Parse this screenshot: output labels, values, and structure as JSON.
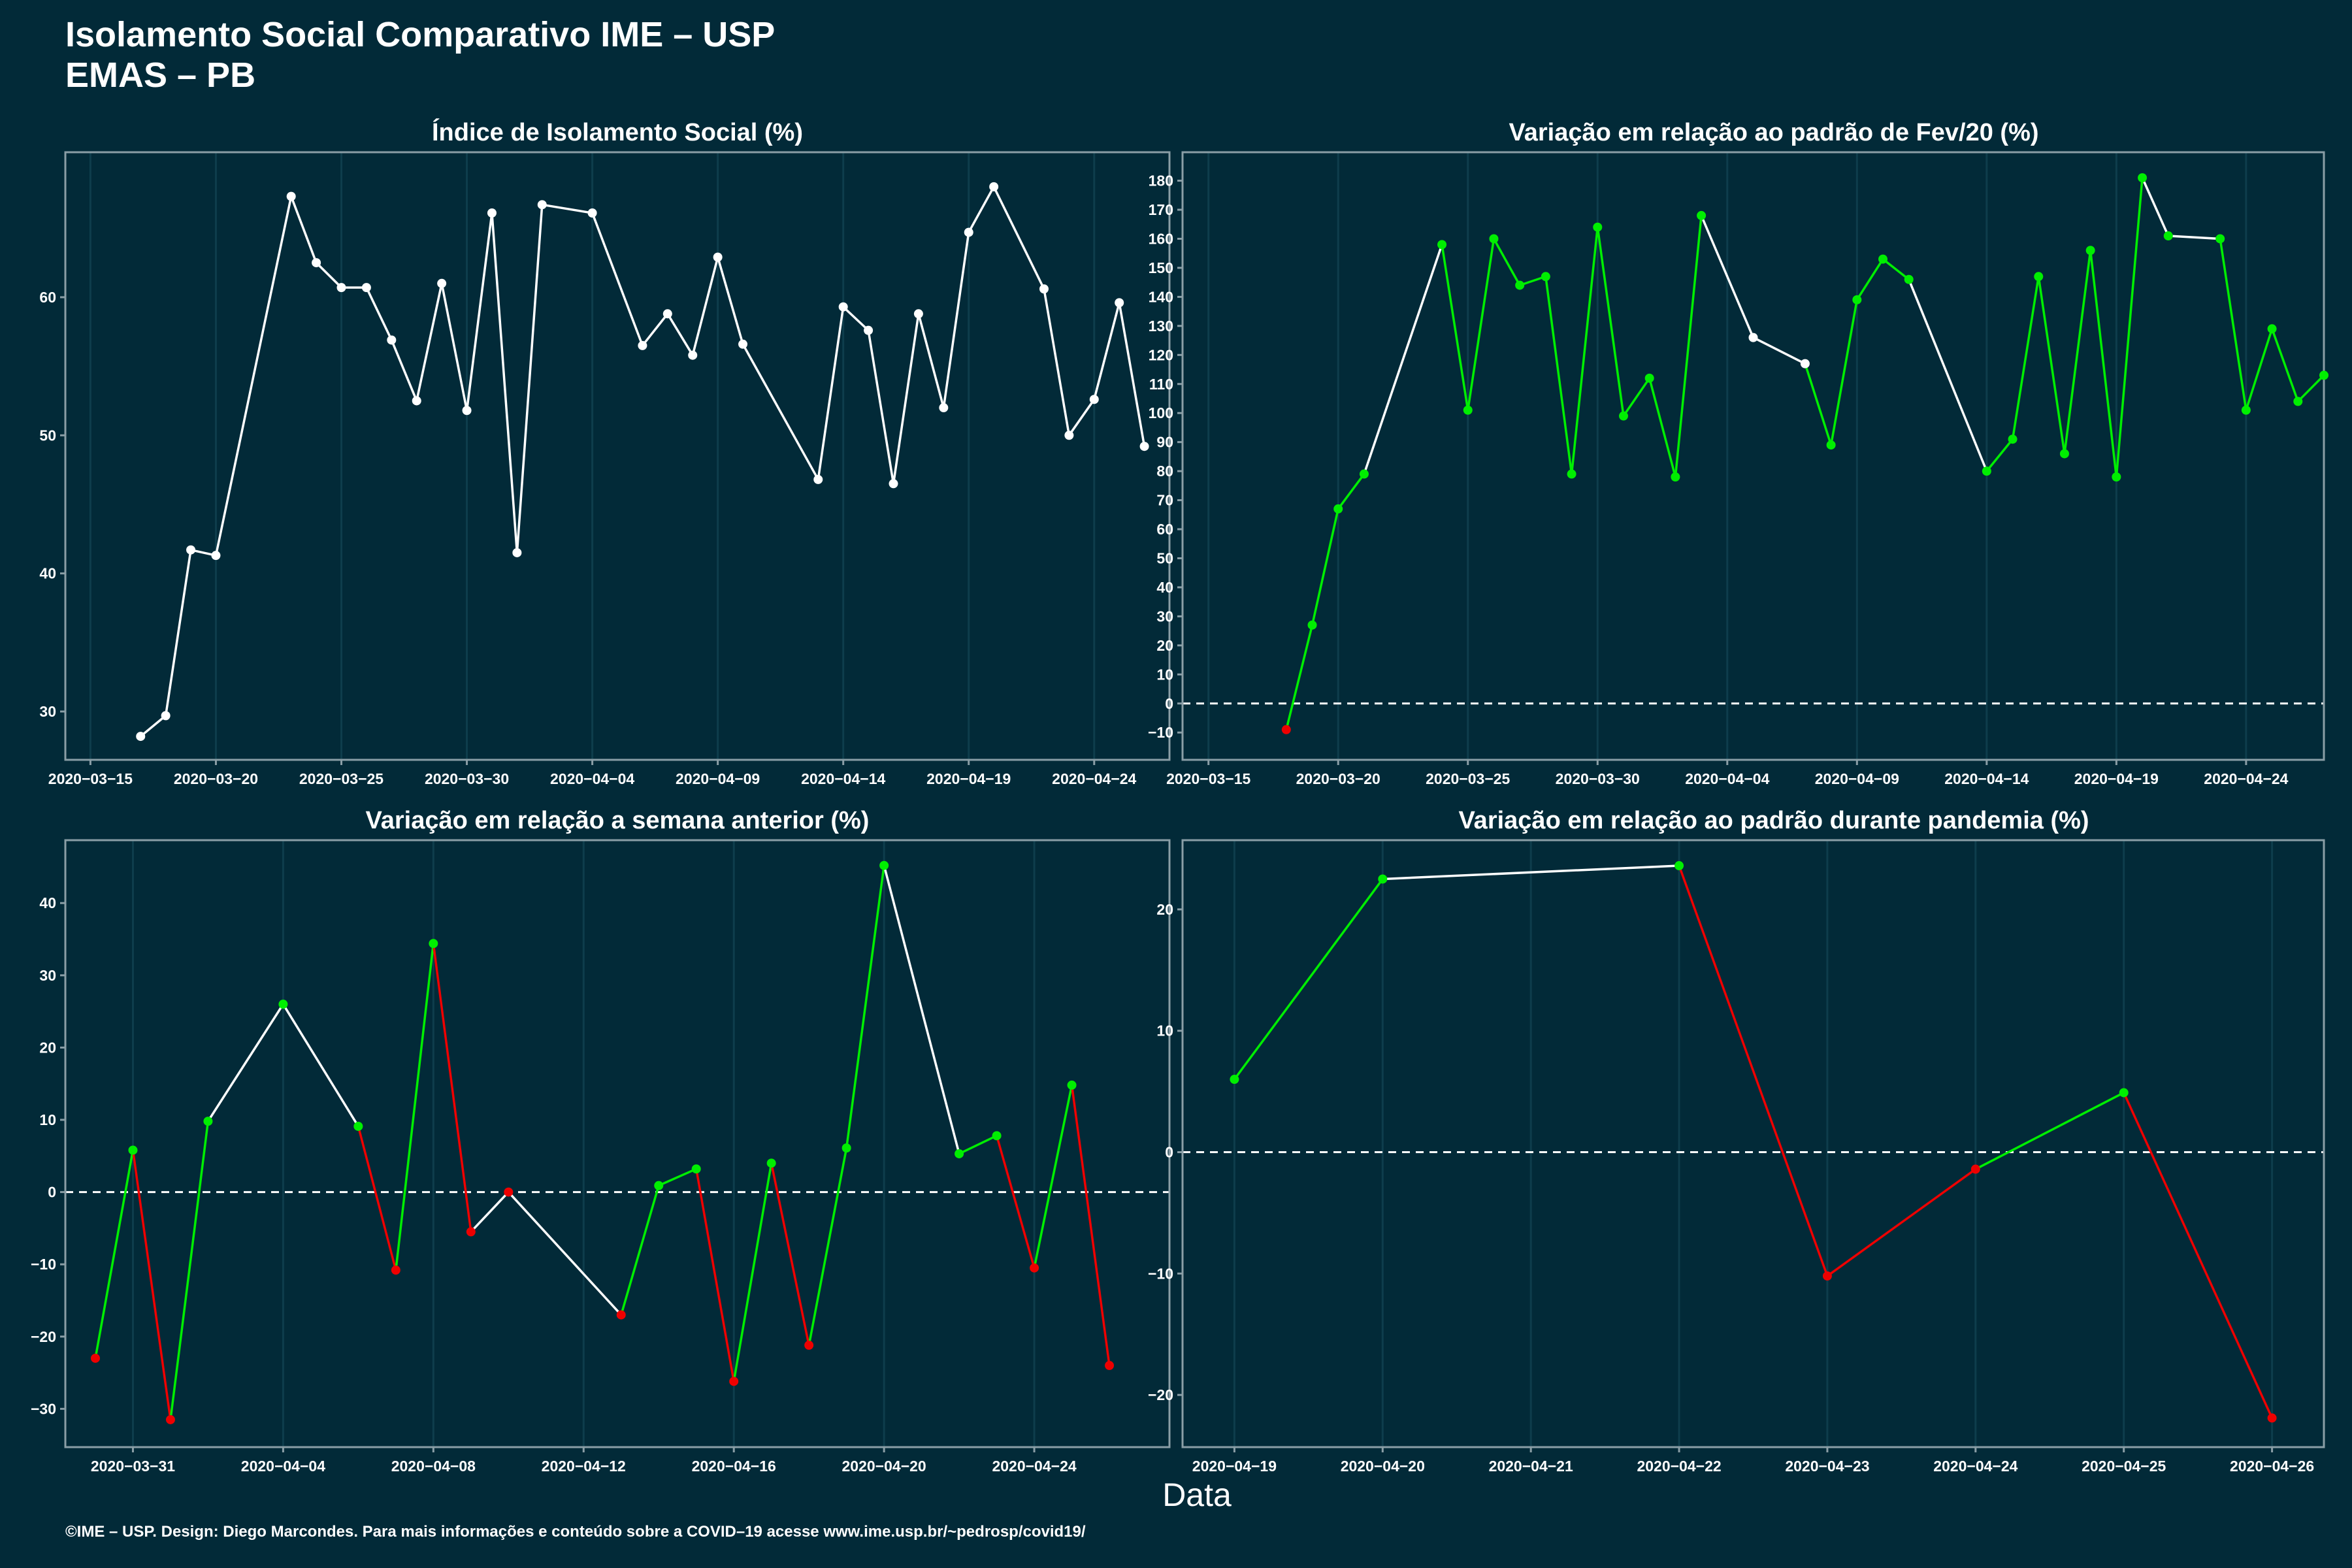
{
  "header": {
    "title_line1": "Isolamento Social Comparativo IME – USP",
    "title_line2": "EMAS – PB"
  },
  "x_axis_label": "Data",
  "footer": "©IME – USP. Design: Diego Marcondes. Para mais informações e conteúdo sobre a COVID–19 acesse www.ime.usp.br/~pedrosp/covid19/",
  "colors": {
    "background": "#022a38",
    "line_white": "#ffffff",
    "positive": "#00ee00",
    "negative": "#ee0000"
  },
  "chart_data": [
    {
      "type": "line",
      "title": "Índice de Isolamento Social (%)",
      "x_start": "2020-03-15",
      "x_ticks": [
        "2020-03-15",
        "2020-03-20",
        "2020-03-25",
        "2020-03-30",
        "2020-04-04",
        "2020-04-09",
        "2020-04-14",
        "2020-04-19",
        "2020-04-24"
      ],
      "x_range": [
        "2020-03-14",
        "2020-04-27"
      ],
      "y_ticks": [
        30,
        40,
        50,
        60
      ],
      "ylim": [
        26.5,
        70.5
      ],
      "zero_line": false,
      "points": [
        {
          "x": "2020-03-17",
          "y": 28.2
        },
        {
          "x": "2020-03-18",
          "y": 29.7
        },
        {
          "x": "2020-03-19",
          "y": 41.7
        },
        {
          "x": "2020-03-20",
          "y": 41.3
        },
        {
          "x": "2020-03-23",
          "y": 67.3
        },
        {
          "x": "2020-03-24",
          "y": 62.5
        },
        {
          "x": "2020-03-25",
          "y": 60.7
        },
        {
          "x": "2020-03-26",
          "y": 60.7
        },
        {
          "x": "2020-03-27",
          "y": 56.9
        },
        {
          "x": "2020-03-28",
          "y": 52.5
        },
        {
          "x": "2020-03-29",
          "y": 61.0
        },
        {
          "x": "2020-03-30",
          "y": 51.8
        },
        {
          "x": "2020-03-31",
          "y": 66.1
        },
        {
          "x": "2020-04-01",
          "y": 41.5
        },
        {
          "x": "2020-04-02",
          "y": 66.7
        },
        {
          "x": "2020-04-04",
          "y": 66.1
        },
        {
          "x": "2020-04-06",
          "y": 56.5
        },
        {
          "x": "2020-04-07",
          "y": 58.8
        },
        {
          "x": "2020-04-08",
          "y": 55.8
        },
        {
          "x": "2020-04-09",
          "y": 62.9
        },
        {
          "x": "2020-04-10",
          "y": 56.6
        },
        {
          "x": "2020-04-13",
          "y": 46.8
        },
        {
          "x": "2020-04-14",
          "y": 59.3
        },
        {
          "x": "2020-04-15",
          "y": 57.6
        },
        {
          "x": "2020-04-16",
          "y": 46.5
        },
        {
          "x": "2020-04-17",
          "y": 58.8
        },
        {
          "x": "2020-04-18",
          "y": 52.0
        },
        {
          "x": "2020-04-19",
          "y": 64.7
        },
        {
          "x": "2020-04-20",
          "y": 68.0
        },
        {
          "x": "2020-04-22",
          "y": 60.6
        },
        {
          "x": "2020-04-23",
          "y": 50.0
        },
        {
          "x": "2020-04-24",
          "y": 52.6
        },
        {
          "x": "2020-04-25",
          "y": 59.6
        },
        {
          "x": "2020-04-26",
          "y": 49.2
        }
      ],
      "segment_colors": [
        "white",
        "white",
        "white",
        "white",
        "white",
        "white",
        "white",
        "white",
        "white",
        "white",
        "white",
        "white",
        "white",
        "white",
        "white",
        "white",
        "white",
        "white",
        "white",
        "white",
        "white",
        "white",
        "white",
        "white",
        "white",
        "white",
        "white",
        "white",
        "white",
        "white",
        "white",
        "white",
        "white"
      ],
      "point_colors": [
        "white",
        "white",
        "white",
        "white",
        "white",
        "white",
        "white",
        "white",
        "white",
        "white",
        "white",
        "white",
        "white",
        "white",
        "white",
        "white",
        "white",
        "white",
        "white",
        "white",
        "white",
        "white",
        "white",
        "white",
        "white",
        "white",
        "white",
        "white",
        "white",
        "white",
        "white",
        "white",
        "white",
        "white"
      ]
    },
    {
      "type": "line",
      "title": "Variação em relação ao padrão de Fev/20 (%)",
      "x_start": "2020-03-15",
      "x_ticks": [
        "2020-03-15",
        "2020-03-20",
        "2020-03-25",
        "2020-03-30",
        "2020-04-04",
        "2020-04-09",
        "2020-04-14",
        "2020-04-19",
        "2020-04-24"
      ],
      "x_range": [
        "2020-03-14",
        "2020-04-27"
      ],
      "y_ticks": [
        -10,
        0,
        10,
        20,
        30,
        40,
        50,
        60,
        70,
        80,
        90,
        100,
        110,
        120,
        130,
        140,
        150,
        160,
        170,
        180
      ],
      "ylim": [
        -19.4,
        189.8
      ],
      "zero_line": true,
      "points": [
        {
          "x": "2020-03-18",
          "y": -9
        },
        {
          "x": "2020-03-19",
          "y": 27
        },
        {
          "x": "2020-03-20",
          "y": 67
        },
        {
          "x": "2020-03-21",
          "y": 79
        },
        {
          "x": "2020-03-24",
          "y": 158
        },
        {
          "x": "2020-03-25",
          "y": 101
        },
        {
          "x": "2020-03-26",
          "y": 160
        },
        {
          "x": "2020-03-27",
          "y": 144
        },
        {
          "x": "2020-03-28",
          "y": 147
        },
        {
          "x": "2020-03-29",
          "y": 79
        },
        {
          "x": "2020-03-30",
          "y": 164
        },
        {
          "x": "2020-03-31",
          "y": 99
        },
        {
          "x": "2020-04-01",
          "y": 112
        },
        {
          "x": "2020-04-02",
          "y": 78
        },
        {
          "x": "2020-04-03",
          "y": 168
        },
        {
          "x": "2020-04-05",
          "y": 126
        },
        {
          "x": "2020-04-07",
          "y": 117
        },
        {
          "x": "2020-04-08",
          "y": 89
        },
        {
          "x": "2020-04-09",
          "y": 139
        },
        {
          "x": "2020-04-10",
          "y": 153
        },
        {
          "x": "2020-04-11",
          "y": 146
        },
        {
          "x": "2020-04-14",
          "y": 80
        },
        {
          "x": "2020-04-15",
          "y": 91
        },
        {
          "x": "2020-04-16",
          "y": 147
        },
        {
          "x": "2020-04-17",
          "y": 86
        },
        {
          "x": "2020-04-18",
          "y": 156
        },
        {
          "x": "2020-04-19",
          "y": 78
        },
        {
          "x": "2020-04-20",
          "y": 181
        },
        {
          "x": "2020-04-21",
          "y": 161
        },
        {
          "x": "2020-04-23",
          "y": 160
        },
        {
          "x": "2020-04-24",
          "y": 101
        },
        {
          "x": "2020-04-25",
          "y": 129
        },
        {
          "x": "2020-04-26",
          "y": 104
        },
        {
          "x": "2020-04-27",
          "y": 113
        }
      ],
      "segment_colors": [
        "green",
        "green",
        "green",
        "white",
        "green",
        "green",
        "green",
        "green",
        "green",
        "green",
        "green",
        "green",
        "green",
        "green",
        "white",
        "white",
        "green",
        "green",
        "green",
        "green",
        "white",
        "green",
        "green",
        "green",
        "green",
        "green",
        "green",
        "white",
        "white",
        "green",
        "green",
        "green",
        "green"
      ],
      "point_colors": [
        "red",
        "green",
        "green",
        "green",
        "green",
        "green",
        "green",
        "green",
        "green",
        "green",
        "green",
        "green",
        "green",
        "green",
        "green",
        "white",
        "white",
        "green",
        "green",
        "green",
        "green",
        "green",
        "green",
        "green",
        "green",
        "green",
        "green",
        "green",
        "green",
        "green",
        "green",
        "green",
        "green",
        "green"
      ]
    },
    {
      "type": "line",
      "title": "Variação em relação a semana anterior (%)",
      "x_start": "2020-03-31",
      "x_ticks": [
        "2020-03-31",
        "2020-04-04",
        "2020-04-08",
        "2020-04-12",
        "2020-04-16",
        "2020-04-20",
        "2020-04-24"
      ],
      "x_range": [
        "2020-03-29.2",
        "2020-04-27.6"
      ],
      "y_ticks": [
        -30,
        -20,
        -10,
        0,
        10,
        20,
        30,
        40
      ],
      "ylim": [
        -35.3,
        48.7
      ],
      "zero_line": true,
      "points": [
        {
          "x": "2020-03-30",
          "y": -23.0
        },
        {
          "x": "2020-03-31",
          "y": 5.8
        },
        {
          "x": "2020-04-01",
          "y": -31.5
        },
        {
          "x": "2020-04-02",
          "y": 9.8
        },
        {
          "x": "2020-04-04",
          "y": 26.0
        },
        {
          "x": "2020-04-06",
          "y": 9.1
        },
        {
          "x": "2020-04-07",
          "y": -10.8
        },
        {
          "x": "2020-04-08",
          "y": 34.4
        },
        {
          "x": "2020-04-09",
          "y": -5.5
        },
        {
          "x": "2020-04-10",
          "y": 0.0
        },
        {
          "x": "2020-04-13",
          "y": -17.0
        },
        {
          "x": "2020-04-14",
          "y": 0.9
        },
        {
          "x": "2020-04-15",
          "y": 3.2
        },
        {
          "x": "2020-04-16",
          "y": -26.2
        },
        {
          "x": "2020-04-17",
          "y": 4.0
        },
        {
          "x": "2020-04-18",
          "y": -21.2
        },
        {
          "x": "2020-04-19",
          "y": 6.1
        },
        {
          "x": "2020-04-20",
          "y": 45.2
        },
        {
          "x": "2020-04-22",
          "y": 5.3
        },
        {
          "x": "2020-04-23",
          "y": 7.8
        },
        {
          "x": "2020-04-24",
          "y": -10.5
        },
        {
          "x": "2020-04-25",
          "y": 14.8
        },
        {
          "x": "2020-04-26",
          "y": -24.0
        }
      ],
      "segment_colors": [
        "green",
        "red",
        "green",
        "white",
        "white",
        "red",
        "green",
        "red",
        "white",
        "white",
        "green",
        "green",
        "red",
        "green",
        "red",
        "green",
        "green",
        "white",
        "green",
        "red",
        "green",
        "red"
      ],
      "point_colors": [
        "red",
        "green",
        "red",
        "green",
        "green",
        "green",
        "red",
        "green",
        "red",
        "red",
        "red",
        "green",
        "green",
        "red",
        "green",
        "red",
        "green",
        "green",
        "green",
        "green",
        "red",
        "green",
        "red"
      ]
    },
    {
      "type": "line",
      "title": "Variação em relação ao padrão durante pandemia (%)",
      "x_start": "2020-04-19",
      "x_ticks": [
        "2020-04-19",
        "2020-04-20",
        "2020-04-21",
        "2020-04-22",
        "2020-04-23",
        "2020-04-24",
        "2020-04-25",
        "2020-04-26"
      ],
      "x_range": [
        "2020-04-18.65",
        "2020-04-26.35"
      ],
      "y_ticks": [
        -20,
        -10,
        0,
        10,
        20
      ],
      "ylim": [
        -24.3,
        25.7
      ],
      "zero_line": true,
      "points": [
        {
          "x": "2020-04-19",
          "y": 6.0
        },
        {
          "x": "2020-04-20",
          "y": 22.5
        },
        {
          "x": "2020-04-22",
          "y": 23.6
        },
        {
          "x": "2020-04-23",
          "y": -10.2
        },
        {
          "x": "2020-04-24",
          "y": -1.4
        },
        {
          "x": "2020-04-25",
          "y": 4.9
        },
        {
          "x": "2020-04-26",
          "y": -21.9
        }
      ],
      "segment_colors": [
        "green",
        "white",
        "red",
        "red",
        "green",
        "red"
      ],
      "point_colors": [
        "green",
        "green",
        "green",
        "red",
        "red",
        "green",
        "red"
      ]
    }
  ]
}
